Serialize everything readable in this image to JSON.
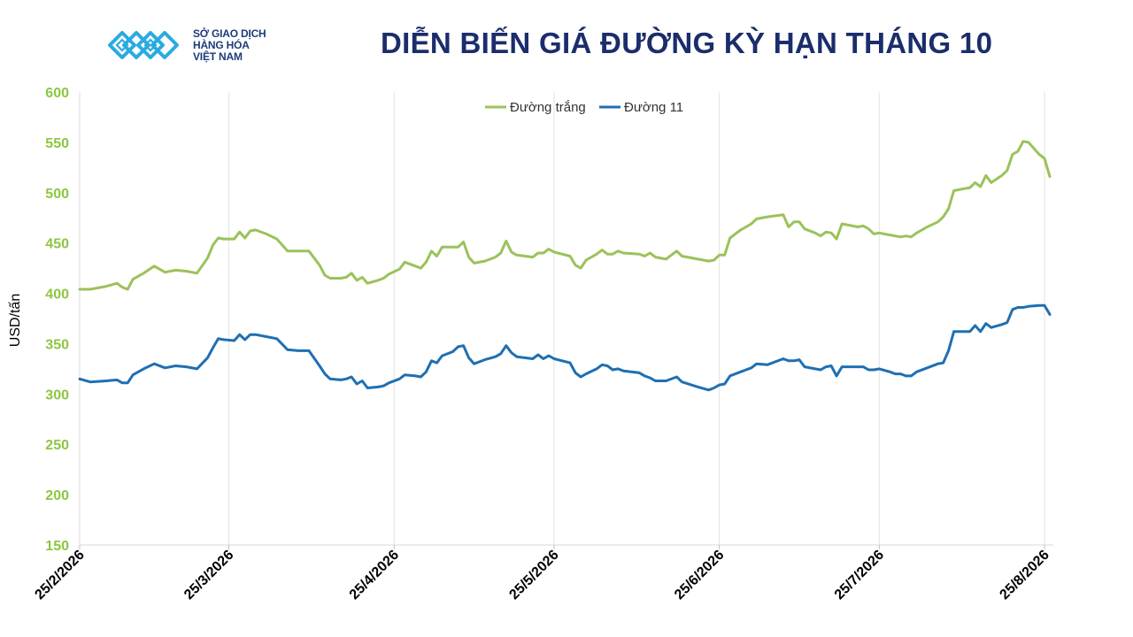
{
  "brand": {
    "line1": "SỞ GIAO DỊCH",
    "line2": "HÀNG HÓA",
    "line3": "VIỆT NAM",
    "icon": "sgd-logo-icon",
    "color": "#29abe2"
  },
  "chart_data": {
    "type": "line",
    "title": "DIỄN BIẾN GIÁ ĐƯỜNG KỲ HẠN THÁNG 10",
    "xlabel": "",
    "ylabel": "USD/tấn",
    "ylim": [
      150,
      600
    ],
    "yticks": [
      150,
      200,
      250,
      300,
      350,
      400,
      450,
      500,
      550,
      600
    ],
    "xlim": [
      "2026-02-25",
      "2026-08-25"
    ],
    "xticks": [
      "25/2/2026",
      "25/3/2026",
      "25/4/2026",
      "25/5/2026",
      "25/6/2026",
      "25/7/2026",
      "25/8/2026"
    ],
    "grid": "vertical",
    "legend_position": "top-center",
    "series": [
      {
        "name": "Đường trắng",
        "color": "#9bc25b",
        "points": [
          [
            "2026-02-25",
            404
          ],
          [
            "2026-02-27",
            404
          ],
          [
            "2026-03-02",
            407
          ],
          [
            "2026-03-04",
            410
          ],
          [
            "2026-03-05",
            406
          ],
          [
            "2026-03-06",
            404
          ],
          [
            "2026-03-07",
            414
          ],
          [
            "2026-03-09",
            420
          ],
          [
            "2026-03-11",
            427
          ],
          [
            "2026-03-13",
            421
          ],
          [
            "2026-03-15",
            423
          ],
          [
            "2026-03-17",
            422
          ],
          [
            "2026-03-19",
            420
          ],
          [
            "2026-03-21",
            435
          ],
          [
            "2026-03-22",
            448
          ],
          [
            "2026-03-23",
            455
          ],
          [
            "2026-03-24",
            454
          ],
          [
            "2026-03-26",
            454
          ],
          [
            "2026-03-27",
            461
          ],
          [
            "2026-03-28",
            455
          ],
          [
            "2026-03-29",
            462
          ],
          [
            "2026-03-30",
            463
          ],
          [
            "2026-04-01",
            459
          ],
          [
            "2026-04-03",
            454
          ],
          [
            "2026-04-05",
            442
          ],
          [
            "2026-04-07",
            442
          ],
          [
            "2026-04-09",
            442
          ],
          [
            "2026-04-11",
            428
          ],
          [
            "2026-04-12",
            418
          ],
          [
            "2026-04-13",
            415
          ],
          [
            "2026-04-15",
            415
          ],
          [
            "2026-04-16",
            416
          ],
          [
            "2026-04-17",
            420
          ],
          [
            "2026-04-18",
            413
          ],
          [
            "2026-04-19",
            416
          ],
          [
            "2026-04-20",
            410
          ],
          [
            "2026-04-22",
            413
          ],
          [
            "2026-04-23",
            415
          ],
          [
            "2026-04-24",
            419
          ],
          [
            "2026-04-26",
            424
          ],
          [
            "2026-04-27",
            431
          ],
          [
            "2026-04-29",
            427
          ],
          [
            "2026-04-30",
            425
          ],
          [
            "2026-05-01",
            431
          ],
          [
            "2026-05-02",
            442
          ],
          [
            "2026-05-03",
            437
          ],
          [
            "2026-05-04",
            446
          ],
          [
            "2026-05-06",
            446
          ],
          [
            "2026-05-07",
            446
          ],
          [
            "2026-05-08",
            451
          ],
          [
            "2026-05-09",
            436
          ],
          [
            "2026-05-10",
            430
          ],
          [
            "2026-05-12",
            432
          ],
          [
            "2026-05-14",
            436
          ],
          [
            "2026-05-15",
            440
          ],
          [
            "2026-05-16",
            452
          ],
          [
            "2026-05-17",
            441
          ],
          [
            "2026-05-18",
            438
          ],
          [
            "2026-05-21",
            436
          ],
          [
            "2026-05-22",
            440
          ],
          [
            "2026-05-23",
            440
          ],
          [
            "2026-05-24",
            444
          ],
          [
            "2026-05-25",
            441
          ],
          [
            "2026-05-28",
            437
          ],
          [
            "2026-05-29",
            428
          ],
          [
            "2026-05-30",
            425
          ],
          [
            "2026-05-31",
            433
          ],
          [
            "2026-06-02",
            439
          ],
          [
            "2026-06-03",
            443
          ],
          [
            "2026-06-04",
            439
          ],
          [
            "2026-06-05",
            439
          ],
          [
            "2026-06-06",
            442
          ],
          [
            "2026-06-07",
            440
          ],
          [
            "2026-06-10",
            439
          ],
          [
            "2026-06-11",
            437
          ],
          [
            "2026-06-12",
            440
          ],
          [
            "2026-06-13",
            436
          ],
          [
            "2026-06-15",
            434
          ],
          [
            "2026-06-17",
            442
          ],
          [
            "2026-06-18",
            437
          ],
          [
            "2026-06-21",
            434
          ],
          [
            "2026-06-23",
            432
          ],
          [
            "2026-06-24",
            433
          ],
          [
            "2026-06-25",
            438
          ],
          [
            "2026-06-26",
            438
          ],
          [
            "2026-06-27",
            455
          ],
          [
            "2026-06-29",
            463
          ],
          [
            "2026-06-30",
            466
          ],
          [
            "2026-07-01",
            469
          ],
          [
            "2026-07-02",
            474
          ],
          [
            "2026-07-04",
            476
          ],
          [
            "2026-07-07",
            478
          ],
          [
            "2026-07-08",
            466
          ],
          [
            "2026-07-09",
            471
          ],
          [
            "2026-07-10",
            471
          ],
          [
            "2026-07-11",
            464
          ],
          [
            "2026-07-13",
            460
          ],
          [
            "2026-07-14",
            457
          ],
          [
            "2026-07-15",
            461
          ],
          [
            "2026-07-16",
            460
          ],
          [
            "2026-07-17",
            454
          ],
          [
            "2026-07-18",
            469
          ],
          [
            "2026-07-20",
            467
          ],
          [
            "2026-07-21",
            466
          ],
          [
            "2026-07-22",
            467
          ],
          [
            "2026-07-23",
            464
          ],
          [
            "2026-07-24",
            459
          ],
          [
            "2026-07-25",
            460
          ],
          [
            "2026-07-27",
            458
          ],
          [
            "2026-07-28",
            457
          ],
          [
            "2026-07-29",
            456
          ],
          [
            "2026-07-30",
            457
          ],
          [
            "2026-07-31",
            456
          ],
          [
            "2026-08-01",
            460
          ],
          [
            "2026-08-03",
            466
          ],
          [
            "2026-08-05",
            471
          ],
          [
            "2026-08-06",
            476
          ],
          [
            "2026-08-07",
            484
          ],
          [
            "2026-08-08",
            502
          ],
          [
            "2026-08-10",
            504
          ],
          [
            "2026-08-11",
            505
          ],
          [
            "2026-08-12",
            510
          ],
          [
            "2026-08-13",
            506
          ],
          [
            "2026-08-14",
            517
          ],
          [
            "2026-08-15",
            510
          ],
          [
            "2026-08-17",
            517
          ],
          [
            "2026-08-18",
            522
          ],
          [
            "2026-08-19",
            538
          ],
          [
            "2026-08-20",
            541
          ],
          [
            "2026-08-21",
            551
          ],
          [
            "2026-08-22",
            550
          ],
          [
            "2026-08-24",
            538
          ],
          [
            "2026-08-25",
            534
          ],
          [
            "2026-08-26",
            516
          ]
        ]
      },
      {
        "name": "Đường 11",
        "color": "#1f6fb2",
        "points": [
          [
            "2026-02-25",
            315
          ],
          [
            "2026-02-27",
            312
          ],
          [
            "2026-03-02",
            313
          ],
          [
            "2026-03-04",
            314
          ],
          [
            "2026-03-05",
            311
          ],
          [
            "2026-03-06",
            311
          ],
          [
            "2026-03-07",
            319
          ],
          [
            "2026-03-09",
            325
          ],
          [
            "2026-03-11",
            330
          ],
          [
            "2026-03-13",
            326
          ],
          [
            "2026-03-15",
            328
          ],
          [
            "2026-03-17",
            327
          ],
          [
            "2026-03-19",
            325
          ],
          [
            "2026-03-21",
            336
          ],
          [
            "2026-03-22",
            346
          ],
          [
            "2026-03-23",
            355
          ],
          [
            "2026-03-24",
            354
          ],
          [
            "2026-03-26",
            353
          ],
          [
            "2026-03-27",
            359
          ],
          [
            "2026-03-28",
            354
          ],
          [
            "2026-03-29",
            359
          ],
          [
            "2026-03-30",
            359
          ],
          [
            "2026-04-01",
            357
          ],
          [
            "2026-04-03",
            355
          ],
          [
            "2026-04-05",
            344
          ],
          [
            "2026-04-07",
            343
          ],
          [
            "2026-04-09",
            343
          ],
          [
            "2026-04-11",
            328
          ],
          [
            "2026-04-12",
            320
          ],
          [
            "2026-04-13",
            315
          ],
          [
            "2026-04-15",
            314
          ],
          [
            "2026-04-16",
            315
          ],
          [
            "2026-04-17",
            317
          ],
          [
            "2026-04-18",
            310
          ],
          [
            "2026-04-19",
            313
          ],
          [
            "2026-04-20",
            306
          ],
          [
            "2026-04-22",
            307
          ],
          [
            "2026-04-23",
            308
          ],
          [
            "2026-04-24",
            311
          ],
          [
            "2026-04-26",
            315
          ],
          [
            "2026-04-27",
            319
          ],
          [
            "2026-04-29",
            318
          ],
          [
            "2026-04-30",
            317
          ],
          [
            "2026-05-01",
            322
          ],
          [
            "2026-05-02",
            333
          ],
          [
            "2026-05-03",
            331
          ],
          [
            "2026-05-04",
            338
          ],
          [
            "2026-05-06",
            342
          ],
          [
            "2026-05-07",
            347
          ],
          [
            "2026-05-08",
            348
          ],
          [
            "2026-05-09",
            336
          ],
          [
            "2026-05-10",
            330
          ],
          [
            "2026-05-12",
            334
          ],
          [
            "2026-05-14",
            337
          ],
          [
            "2026-05-15",
            340
          ],
          [
            "2026-05-16",
            348
          ],
          [
            "2026-05-17",
            341
          ],
          [
            "2026-05-18",
            337
          ],
          [
            "2026-05-21",
            335
          ],
          [
            "2026-05-22",
            339
          ],
          [
            "2026-05-23",
            335
          ],
          [
            "2026-05-24",
            338
          ],
          [
            "2026-05-25",
            335
          ],
          [
            "2026-05-28",
            331
          ],
          [
            "2026-05-29",
            321
          ],
          [
            "2026-05-30",
            317
          ],
          [
            "2026-05-31",
            320
          ],
          [
            "2026-06-02",
            325
          ],
          [
            "2026-06-03",
            329
          ],
          [
            "2026-06-04",
            328
          ],
          [
            "2026-06-05",
            324
          ],
          [
            "2026-06-06",
            325
          ],
          [
            "2026-06-07",
            323
          ],
          [
            "2026-06-10",
            321
          ],
          [
            "2026-06-11",
            318
          ],
          [
            "2026-06-12",
            316
          ],
          [
            "2026-06-13",
            313
          ],
          [
            "2026-06-15",
            313
          ],
          [
            "2026-06-17",
            317
          ],
          [
            "2026-06-18",
            312
          ],
          [
            "2026-06-21",
            307
          ],
          [
            "2026-06-23",
            304
          ],
          [
            "2026-06-24",
            306
          ],
          [
            "2026-06-25",
            309
          ],
          [
            "2026-06-26",
            310
          ],
          [
            "2026-06-27",
            318
          ],
          [
            "2026-06-29",
            322
          ],
          [
            "2026-06-30",
            324
          ],
          [
            "2026-07-01",
            326
          ],
          [
            "2026-07-02",
            330
          ],
          [
            "2026-07-04",
            329
          ],
          [
            "2026-07-07",
            335
          ],
          [
            "2026-07-08",
            333
          ],
          [
            "2026-07-09",
            333
          ],
          [
            "2026-07-10",
            334
          ],
          [
            "2026-07-11",
            327
          ],
          [
            "2026-07-13",
            325
          ],
          [
            "2026-07-14",
            324
          ],
          [
            "2026-07-15",
            327
          ],
          [
            "2026-07-16",
            328
          ],
          [
            "2026-07-17",
            318
          ],
          [
            "2026-07-18",
            327
          ],
          [
            "2026-07-20",
            327
          ],
          [
            "2026-07-21",
            327
          ],
          [
            "2026-07-22",
            327
          ],
          [
            "2026-07-23",
            324
          ],
          [
            "2026-07-24",
            324
          ],
          [
            "2026-07-25",
            325
          ],
          [
            "2026-07-27",
            322
          ],
          [
            "2026-07-28",
            320
          ],
          [
            "2026-07-29",
            320
          ],
          [
            "2026-07-30",
            318
          ],
          [
            "2026-07-31",
            318
          ],
          [
            "2026-08-01",
            322
          ],
          [
            "2026-08-03",
            326
          ],
          [
            "2026-08-05",
            330
          ],
          [
            "2026-08-06",
            331
          ],
          [
            "2026-08-07",
            343
          ],
          [
            "2026-08-08",
            362
          ],
          [
            "2026-08-10",
            362
          ],
          [
            "2026-08-11",
            362
          ],
          [
            "2026-08-12",
            368
          ],
          [
            "2026-08-13",
            362
          ],
          [
            "2026-08-14",
            370
          ],
          [
            "2026-08-15",
            366
          ],
          [
            "2026-08-17",
            369
          ],
          [
            "2026-08-18",
            371
          ],
          [
            "2026-08-19",
            384
          ],
          [
            "2026-08-20",
            386
          ],
          [
            "2026-08-21",
            386
          ],
          [
            "2026-08-22",
            387
          ],
          [
            "2026-08-24",
            388
          ],
          [
            "2026-08-25",
            388
          ],
          [
            "2026-08-26",
            379
          ]
        ]
      }
    ]
  }
}
